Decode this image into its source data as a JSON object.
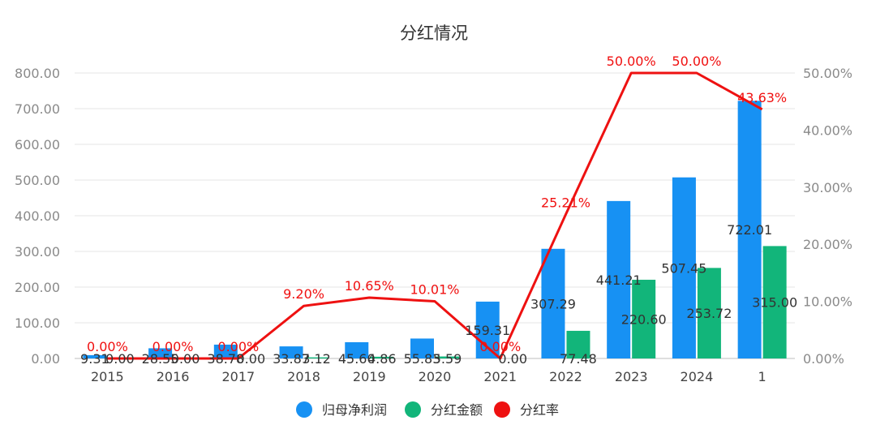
{
  "chart_data": {
    "type": "bar",
    "title": "分红情况",
    "categories": [
      "2015",
      "2016",
      "2017",
      "2018",
      "2019",
      "2020",
      "2021",
      "2022",
      "2023",
      "2024",
      "1"
    ],
    "series": [
      {
        "name": "归母净利润",
        "type": "bar",
        "axis": "left",
        "color": "#1791f3",
        "values": [
          9.31,
          28.55,
          38.78,
          33.87,
          45.6,
          55.83,
          159.31,
          307.29,
          441.21,
          507.45,
          722.01
        ],
        "labels": [
          "9.31",
          "28.55",
          "38.78",
          "33.87",
          "45.60",
          "55.83",
          "159.31",
          "307.29",
          "441.21",
          "507.45",
          "722.01"
        ]
      },
      {
        "name": "分红金额",
        "type": "bar",
        "axis": "left",
        "color": "#12b57a",
        "values": [
          0.0,
          0.0,
          0.0,
          3.12,
          4.86,
          5.59,
          0.0,
          77.48,
          220.6,
          253.72,
          315.0
        ],
        "labels": [
          "0.00",
          "0.00",
          "0.00",
          "3.12",
          "4.86",
          "5.59",
          "0.00",
          "77.48",
          "220.60",
          "253.72",
          "315.00"
        ]
      },
      {
        "name": "分红率",
        "type": "line",
        "axis": "right",
        "color": "#ee1111",
        "values": [
          0.0,
          0.0,
          0.0,
          9.2,
          10.65,
          10.01,
          0.0,
          25.21,
          50.0,
          50.0,
          43.63
        ],
        "labels": [
          "0.00%",
          "0.00%",
          "0.00%",
          "9.20%",
          "10.65%",
          "10.01%",
          "0.00%",
          "25.21%",
          "50.00%",
          "50.00%",
          "43.63%"
        ]
      }
    ],
    "y_left": {
      "range": [
        0,
        800
      ],
      "ticks": [
        "0.00",
        "100.00",
        "200.00",
        "300.00",
        "400.00",
        "500.00",
        "600.00",
        "700.00",
        "800.00"
      ]
    },
    "y_right": {
      "range": [
        0,
        50
      ],
      "ticks": [
        "0.00%",
        "10.00%",
        "20.00%",
        "30.00%",
        "40.00%",
        "50.00%"
      ]
    },
    "grid": true,
    "legend_position": "bottom"
  }
}
